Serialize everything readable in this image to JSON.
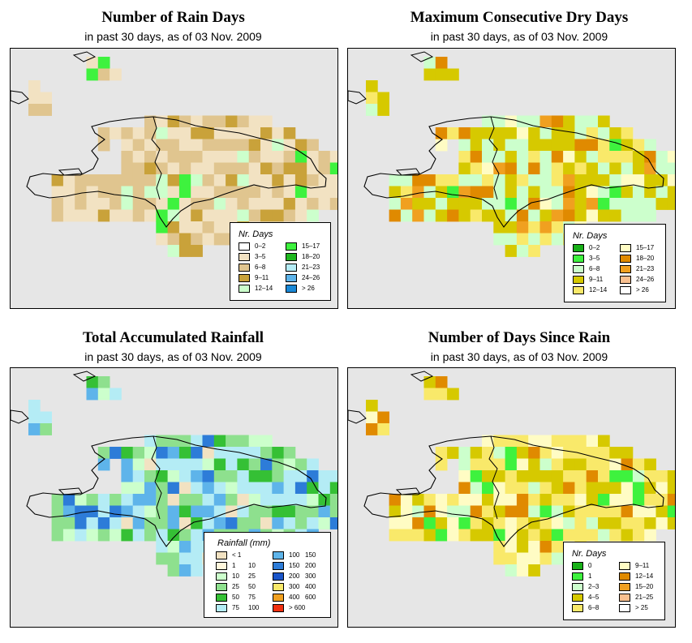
{
  "panels": [
    {
      "id": "rain-days",
      "title": "Number of Rain Days",
      "subtitle": "in past 30 days, as of  03 Nov. 2009",
      "legend": {
        "title": "Nr. Days",
        "items": [
          {
            "label": "0–2",
            "color": "#ffffff"
          },
          {
            "label": "3–5",
            "color": "#f2e2c2"
          },
          {
            "label": "6–8",
            "color": "#e0c58f"
          },
          {
            "label": "9–11",
            "color": "#c9a23a"
          },
          {
            "label": "12–14",
            "color": "#ccffcc"
          },
          {
            "label": "15–17",
            "color": "#3ef23e"
          },
          {
            "label": "18–20",
            "color": "#1fb81f"
          },
          {
            "label": "21–23",
            "color": "#b4ecf5"
          },
          {
            "label": "24–26",
            "color": "#5eb4ea"
          },
          {
            "label": "> 26",
            "color": "#1a88d6"
          }
        ]
      }
    },
    {
      "id": "max-dry-days",
      "title": "Maximum Consecutive Dry Days",
      "subtitle": "in past 30 days, as of  03 Nov. 2009",
      "legend": {
        "title": "Nr. Days",
        "items": [
          {
            "label": "0–2",
            "color": "#18b018"
          },
          {
            "label": "3–5",
            "color": "#3ef23e"
          },
          {
            "label": "6–8",
            "color": "#ccffcc"
          },
          {
            "label": "9–11",
            "color": "#d6c900"
          },
          {
            "label": "12–14",
            "color": "#f9e96a"
          },
          {
            "label": "15–17",
            "color": "#fffcc4"
          },
          {
            "label": "18–20",
            "color": "#e08a00"
          },
          {
            "label": "21–23",
            "color": "#f0a020"
          },
          {
            "label": "24–26",
            "color": "#f9c090"
          },
          {
            "label": "> 26",
            "color": "#ffffff"
          }
        ]
      }
    },
    {
      "id": "total-rainfall",
      "title": "Total Accumulated Rainfall",
      "subtitle": "in past 30 days, as of  03 Nov. 2009",
      "legend": {
        "title": "Rainfall (mm)",
        "items": [
          {
            "from": "",
            "to": "< 1",
            "color": "#f2e2c2"
          },
          {
            "from": "1",
            "to": "10",
            "color": "#fff6dc"
          },
          {
            "from": "10",
            "to": "25",
            "color": "#ccffcc"
          },
          {
            "from": "25",
            "to": "50",
            "color": "#8ee08e"
          },
          {
            "from": "50",
            "to": "75",
            "color": "#35c035"
          },
          {
            "from": "75",
            "to": "100",
            "color": "#b4ecf5"
          },
          {
            "from": "100",
            "to": "150",
            "color": "#5eb4ea"
          },
          {
            "from": "150",
            "to": "200",
            "color": "#2d7cd8"
          },
          {
            "from": "200",
            "to": "300",
            "color": "#1a55c9"
          },
          {
            "from": "300",
            "to": "400",
            "color": "#f9e96a"
          },
          {
            "from": "400",
            "to": "600",
            "color": "#f0a020"
          },
          {
            "from": "",
            "to": "> 600",
            "color": "#f03010"
          }
        ]
      }
    },
    {
      "id": "days-since-rain",
      "title": "Number of Days Since Rain",
      "subtitle": "in past 30 days, as of  03 Nov. 2009",
      "legend": {
        "title": "Nr. Days",
        "items": [
          {
            "label": "0",
            "color": "#18b018"
          },
          {
            "label": "1",
            "color": "#3ef23e"
          },
          {
            "label": "2–3",
            "color": "#ccffcc"
          },
          {
            "label": "4–5",
            "color": "#d6c900"
          },
          {
            "label": "6–8",
            "color": "#f9e96a"
          },
          {
            "label": "9–11",
            "color": "#fffcc4"
          },
          {
            "label": "12–14",
            "color": "#e08a00"
          },
          {
            "label": "15–20",
            "color": "#f0a020"
          },
          {
            "label": "21–25",
            "color": "#f9c090"
          },
          {
            "label": "> 25",
            "color": "#ffffff"
          }
        ]
      }
    }
  ],
  "grid_class_maps": [
    [
      ".......FFF.............................",
      "........2................................",
      "..1......................................",
      "..3......................................",
      "...........22.223..........................",
      "........22223332222.......................",
      ".......4..422222223.......................",
      "..........44544222222.....................",
      ".........55433322222.221..................",
      "...........433432221212..................",
      "..........54343322122332..................",
      "......34454543224223331...................",
      "....144434344224222222322.................",
      "....22344432222233232221..................",
      "....3323334333322222......................",
      ".................2222.....................",
      ".................2222.....................",
      ".................22.......................",
      "..........................................",
      "........................................."
    ],
    [
      ".......DE.................................",
      ".......4..E...............................",
      "..................................3.......",
      "..........................................",
      "..........3343333.........................",
      "..........33..43434.......................",
      "..........2213334544......................",
      "........32221234434.4.....................",
      "........22223345733434....................",
      "........222234444444.7....................",
      "...3..3.11122244543333....................",
      "...3343322233433344345....................",
      "....3342334334533333333...................",
      "....33333443443433333333..................",
      "....333334333323333.......................",
      "...................33.....................",
      "...................34.....................",
      "...................33.....................",
      "..........................................",
      ".........................................."
    ],
    [
      "..........................................",
      "........777...............................",
      "........7.7...............................",
      "..........................................",
      "..........................................",
      "............54444........................."
    ],
    [
      ".........................................."
    ]
  ]
}
